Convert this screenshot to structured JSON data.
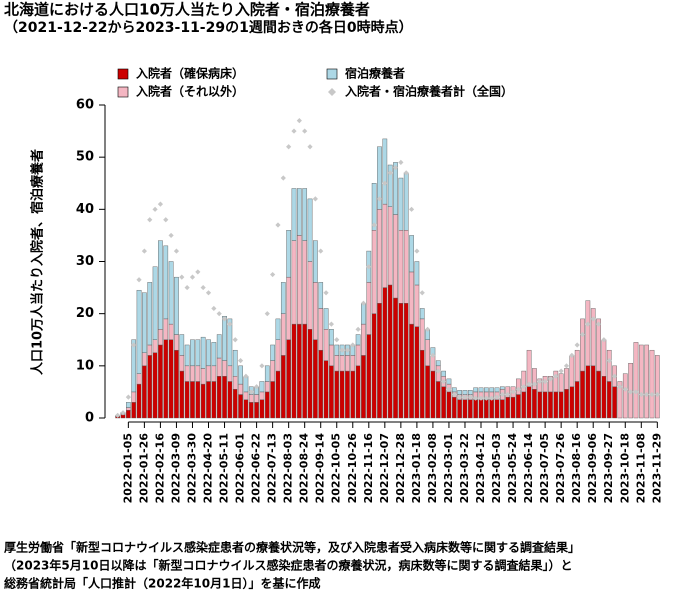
{
  "chart_data": {
    "type": "stacked-bar",
    "title": "北海道における人口10万人当たり入院者・宿泊療養者",
    "subtitle": "（2021-12-22から2023-11-29の1週間おきの各日0時時点）",
    "y_label": "人口10万人当たり入院者、宿泊療養者",
    "ylim": [
      0,
      60
    ],
    "yticks": [
      0,
      10,
      20,
      30,
      40,
      50,
      60
    ],
    "categories": [
      null,
      null,
      "2022-01-05",
      null,
      null,
      "2022-01-26",
      null,
      null,
      "2022-02-16",
      null,
      null,
      "2022-03-09",
      null,
      null,
      "2022-03-30",
      null,
      null,
      "2022-04-20",
      null,
      null,
      "2022-05-11",
      null,
      null,
      "2022-06-01",
      null,
      null,
      "2022-06-22",
      null,
      null,
      "2022-07-13",
      null,
      null,
      "2022-08-03",
      null,
      null,
      "2022-08-24",
      null,
      null,
      "2022-09-14",
      null,
      null,
      "2022-10-05",
      null,
      null,
      "2022-10-26",
      null,
      null,
      "2022-11-16",
      null,
      null,
      "2022-12-07",
      null,
      null,
      "2022-12-28",
      null,
      null,
      "2023-01-18",
      null,
      null,
      "2023-02-08",
      null,
      null,
      "2023-03-01",
      null,
      null,
      "2023-03-22",
      null,
      null,
      "2023-04-12",
      null,
      null,
      "2023-05-03",
      null,
      null,
      "2023-05-24",
      null,
      null,
      "2023-06-14",
      null,
      null,
      "2023-07-05",
      null,
      null,
      "2023-07-26",
      null,
      null,
      "2023-08-16",
      null,
      null,
      "2023-09-06",
      null,
      null,
      "2023-09-27",
      null,
      null,
      "2023-10-18",
      null,
      null,
      "2023-11-08",
      null,
      null,
      "2023-11-29"
    ],
    "series": [
      {
        "name": "入院者（確保病床）",
        "color": "#cc0000",
        "stack": true,
        "values": [
          0.3,
          0.6,
          1.5,
          3,
          6.5,
          10,
          12,
          12.5,
          14,
          15,
          15,
          13,
          9,
          7,
          7,
          7,
          6.5,
          7,
          7,
          8,
          8,
          7,
          5.5,
          4.5,
          3.5,
          3,
          3,
          3.5,
          5,
          7,
          9,
          12,
          15,
          18,
          18,
          18,
          17,
          15,
          13,
          11,
          10,
          9,
          9,
          9,
          9,
          10,
          12,
          16,
          20,
          22,
          25,
          25.5,
          23,
          22,
          22,
          18,
          17.5,
          13,
          10,
          9,
          7,
          6,
          5,
          4,
          3.5,
          3.5,
          3.5,
          3.5,
          3.5,
          3.5,
          3.5,
          3.5,
          3.5,
          4,
          4,
          4.5,
          5,
          6,
          5.5,
          5,
          5,
          5,
          5,
          5,
          5.5,
          6,
          7,
          9,
          10,
          10,
          9,
          8,
          7,
          6,
          null,
          null,
          null,
          null,
          null,
          null,
          null,
          null
        ]
      },
      {
        "name": "入院者（それ以外）",
        "color": "#f4b6c2",
        "stack": true,
        "values": [
          0.1,
          0.2,
          0.5,
          2,
          2,
          2.5,
          2,
          2.5,
          3,
          4,
          3,
          3,
          3,
          3,
          3,
          3,
          3,
          3,
          3,
          3.5,
          3,
          3,
          2.5,
          2,
          1.5,
          1.5,
          1.5,
          1.5,
          2,
          4,
          6,
          8,
          12,
          16,
          17,
          16,
          13,
          11,
          8,
          6,
          4,
          3,
          3,
          3,
          3,
          4,
          6,
          10,
          16,
          18,
          16,
          15,
          16,
          14,
          14,
          10,
          8,
          6,
          5,
          3,
          3,
          2,
          1.5,
          1,
          1,
          1,
          1,
          1.5,
          1.5,
          1.5,
          1.5,
          1.5,
          2,
          2,
          2,
          3,
          4,
          7,
          4,
          2.5,
          3,
          3,
          4,
          3.5,
          4,
          6,
          6,
          10,
          12.5,
          11,
          10,
          7,
          6,
          4,
          7,
          8.5,
          10.5,
          14.5,
          14,
          14,
          13,
          12
        ]
      },
      {
        "name": "宿泊療養者",
        "color": "#add8e6",
        "stack": true,
        "values": [
          0.1,
          0.3,
          1,
          10,
          16,
          11.5,
          12,
          14,
          17,
          14,
          12,
          11,
          4,
          4,
          5,
          5,
          6,
          5,
          4.5,
          4.5,
          8.5,
          9,
          5,
          3.5,
          3,
          1.5,
          1.5,
          2,
          3,
          3,
          4,
          6,
          9,
          10,
          9,
          10,
          12,
          8,
          5,
          4,
          3,
          2,
          2,
          2,
          2,
          2,
          4,
          6,
          9,
          12,
          12.5,
          8,
          10,
          10,
          11,
          7,
          4.5,
          2,
          2,
          1.5,
          1,
          1,
          1,
          0.8,
          0.8,
          0.8,
          0.8,
          0.8,
          0.8,
          0.8,
          0.8,
          0.8,
          0.5,
          null,
          null,
          null,
          null,
          null,
          null,
          null,
          null,
          null,
          null,
          null,
          null,
          null,
          null,
          null,
          null,
          null,
          null,
          null,
          null,
          null,
          null,
          null,
          null,
          null,
          null,
          null,
          null,
          null
        ]
      },
      {
        "name": "入院者・宿泊療養者計（全国）",
        "color": "#c8c8c8",
        "stack": false,
        "values": [
          0.5,
          1,
          4,
          14,
          26.5,
          32,
          38,
          40,
          41,
          38,
          35,
          32,
          27,
          25,
          27,
          28,
          25,
          24,
          21,
          20,
          19,
          18,
          15,
          11,
          8,
          5,
          6,
          10,
          20,
          27.5,
          37,
          46,
          52,
          55,
          57,
          55,
          52,
          42,
          32,
          24,
          18,
          15,
          13,
          13,
          14,
          17,
          22,
          29,
          37,
          42,
          45,
          47,
          48,
          49,
          47,
          40,
          32,
          24,
          17,
          12,
          9,
          7,
          5.5,
          4.5,
          4,
          4,
          4,
          3.8,
          3.8,
          3.8,
          3.8,
          4,
          4.5,
          4.5,
          5,
          5.5,
          6,
          6.5,
          6.5,
          7,
          7,
          7.5,
          8,
          9,
          10,
          12,
          14,
          16,
          18,
          19,
          18,
          15,
          11,
          8,
          6,
          5.5,
          5,
          5,
          4.5,
          4.5,
          4.5,
          4.5
        ]
      }
    ],
    "source": [
      "厚生労働省「新型コロナウイルス感染症患者の療養状況等，及び入院患者受入病床数等に関する調査結果」",
      "（2023年5月10日以降は「新型コロナウイルス感染症患者の療養状況，病床数等に関する調査結果」）と",
      "総務省統計局「人口推計（2022年10月1日）」を基に作成"
    ]
  }
}
